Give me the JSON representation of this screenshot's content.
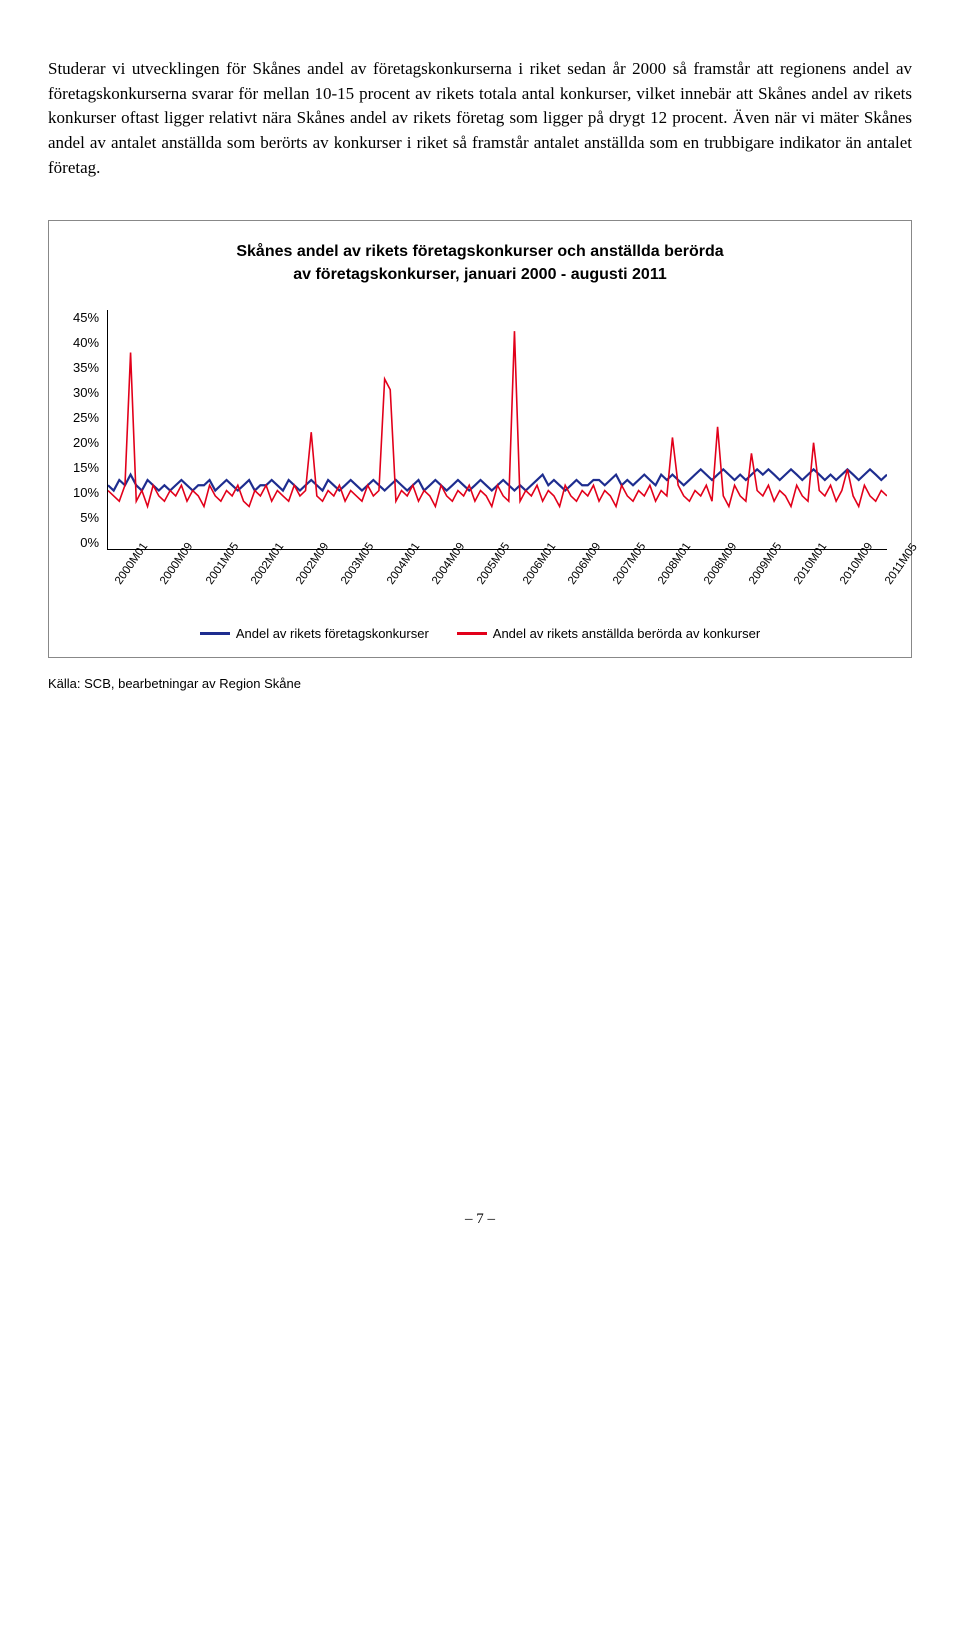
{
  "paragraph": "Studerar vi utvecklingen för Skånes andel av företagskonkurserna i riket sedan år 2000 så framstår att regionens andel av företagskonkurserna svarar för mellan 10-15 procent av rikets totala antal konkurser, vilket innebär att Skånes andel av rikets konkurser oftast ligger relativt nära Skånes andel av rikets företag som ligger på drygt 12 procent. Även när vi mäter Skånes andel av antalet anställda som berörts av konkurser i riket så framstår antalet anställda som en trubbigare indikator än antalet företag.",
  "chart": {
    "type": "line",
    "title_line1": "Skånes andel av rikets företagskonkurser och anställda berörda",
    "title_line2": "av företagskonkurser, januari 2000 - augusti 2011",
    "y_ticks": [
      "45%",
      "40%",
      "35%",
      "30%",
      "25%",
      "20%",
      "15%",
      "10%",
      "5%",
      "0%"
    ],
    "ylim": [
      0,
      45
    ],
    "x_labels": [
      "2000M01",
      "2000M09",
      "2001M05",
      "2002M01",
      "2002M09",
      "2003M05",
      "2004M01",
      "2004M09",
      "2005M05",
      "2006M01",
      "2006M09",
      "2007M05",
      "2008M01",
      "2008M09",
      "2009M05",
      "2010M01",
      "2010M09",
      "2011M05"
    ],
    "series": [
      {
        "name": "Andel av rikets företagskonkurser",
        "color": "#1e2d8f",
        "width": 2.2,
        "values": [
          12,
          11,
          13,
          12,
          14,
          12,
          11,
          13,
          12,
          11,
          12,
          11,
          12,
          13,
          12,
          11,
          12,
          12,
          13,
          11,
          12,
          13,
          12,
          11,
          12,
          13,
          11,
          12,
          12,
          13,
          12,
          11,
          13,
          12,
          11,
          12,
          13,
          12,
          11,
          13,
          12,
          11,
          12,
          13,
          12,
          11,
          12,
          13,
          12,
          11,
          12,
          13,
          12,
          11,
          12,
          13,
          11,
          12,
          13,
          12,
          11,
          12,
          13,
          12,
          11,
          12,
          13,
          12,
          11,
          12,
          13,
          12,
          11,
          12,
          11,
          12,
          13,
          14,
          12,
          13,
          12,
          11,
          12,
          13,
          12,
          12,
          13,
          13,
          12,
          13,
          14,
          12,
          13,
          12,
          13,
          14,
          13,
          12,
          14,
          13,
          14,
          13,
          12,
          13,
          14,
          15,
          14,
          13,
          14,
          15,
          14,
          13,
          14,
          13,
          14,
          15,
          14,
          15,
          14,
          13,
          14,
          15,
          14,
          13,
          14,
          15,
          14,
          13,
          14,
          13,
          14,
          15,
          14,
          13,
          14,
          15,
          14,
          13,
          14
        ]
      },
      {
        "name": "Andel av rikets anställda berörda av konkurser",
        "color": "#e2001a",
        "width": 1.6,
        "values": [
          11,
          10,
          9,
          12,
          37,
          9,
          11,
          8,
          12,
          10,
          9,
          11,
          10,
          12,
          9,
          11,
          10,
          8,
          12,
          10,
          9,
          11,
          10,
          12,
          9,
          8,
          11,
          10,
          12,
          9,
          11,
          10,
          9,
          12,
          10,
          11,
          22,
          10,
          9,
          11,
          10,
          12,
          9,
          11,
          10,
          9,
          12,
          10,
          11,
          32,
          30,
          9,
          11,
          10,
          12,
          9,
          11,
          10,
          8,
          12,
          10,
          9,
          11,
          10,
          12,
          9,
          11,
          10,
          8,
          12,
          10,
          9,
          41,
          9,
          11,
          10,
          12,
          9,
          11,
          10,
          8,
          12,
          10,
          9,
          11,
          10,
          12,
          9,
          11,
          10,
          8,
          12,
          10,
          9,
          11,
          10,
          12,
          9,
          11,
          10,
          21,
          12,
          10,
          9,
          11,
          10,
          12,
          9,
          23,
          10,
          8,
          12,
          10,
          9,
          18,
          11,
          10,
          12,
          9,
          11,
          10,
          8,
          12,
          10,
          9,
          20,
          11,
          10,
          12,
          9,
          11,
          15,
          10,
          8,
          12,
          10,
          9,
          11,
          10
        ]
      }
    ],
    "legend": [
      {
        "color": "#1e2d8f",
        "label": "Andel av rikets företagskonkurser"
      },
      {
        "color": "#e2001a",
        "label": "Andel av rikets anställda berörda av konkurser"
      }
    ]
  },
  "source": "Källa: SCB, bearbetningar av Region Skåne",
  "page_number": "– 7 –"
}
